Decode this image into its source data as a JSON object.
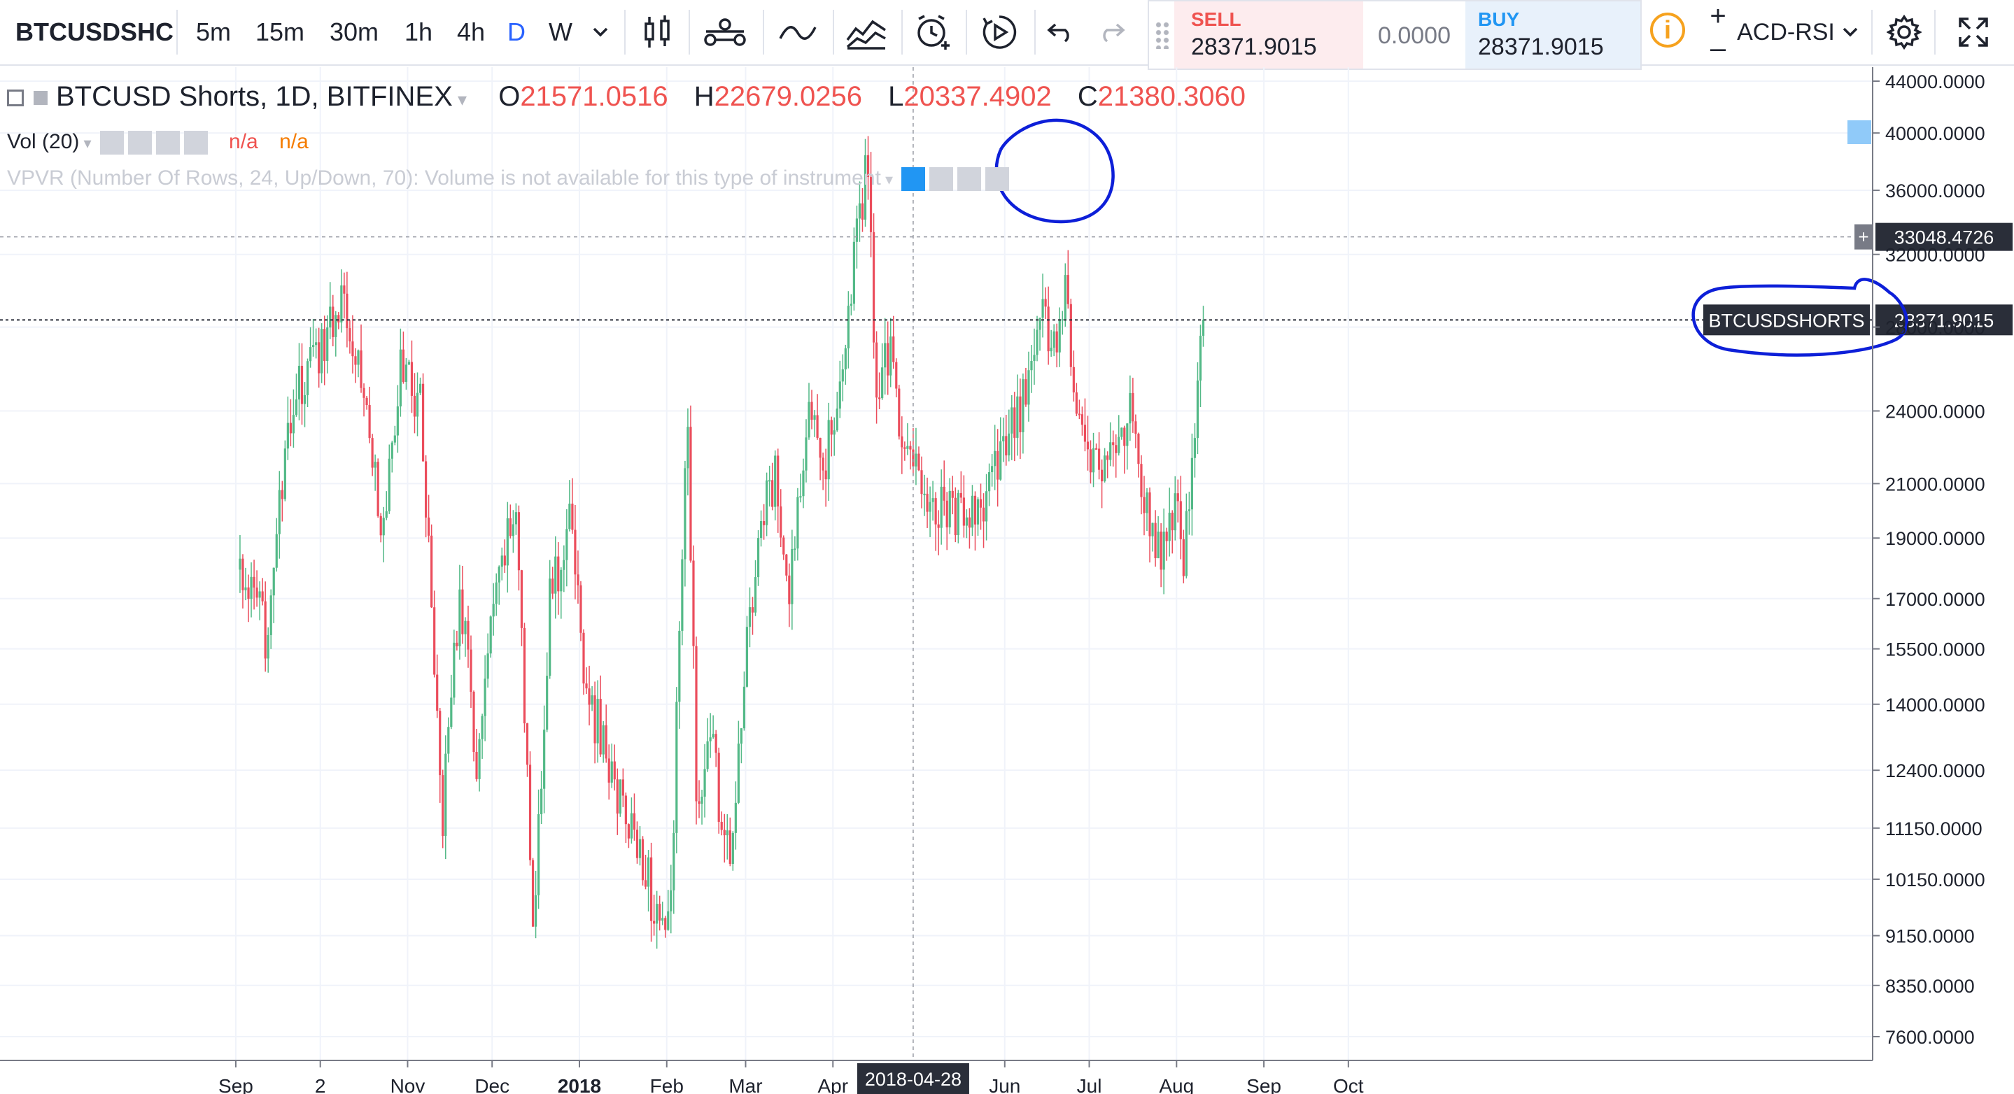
{
  "toolbar": {
    "symbol": "BTCUSDSHC",
    "intervals": [
      "5m",
      "15m",
      "30m",
      "1h",
      "4h",
      "D",
      "W"
    ],
    "active_interval": "D",
    "sell_label": "SELL",
    "sell_price": "28371.9015",
    "spread": "0.0000",
    "buy_label": "BUY",
    "buy_price": "28371.9015",
    "info": "i",
    "zoom_in": "+",
    "zoom_out": "–",
    "indicator_menu": "ACD-RSI"
  },
  "legend": {
    "title": "BTCUSD Shorts, 1D, BITFINEX",
    "o_label": "O",
    "o_value": "21571.0516",
    "h_label": "H",
    "h_value": "22679.0256",
    "l_label": "L",
    "l_value": "20337.4902",
    "c_label": "C",
    "c_value": "21380.3060",
    "vol_label": "Vol (20)",
    "vol_na1": "n/a",
    "vol_na2": "n/a",
    "vpvr_text": "VPVR (Number Of Rows, 24, Up/Down, 70): Volume is not available for this type of instrument"
  },
  "crosshair": {
    "price_label": "33048.4726",
    "date_label": "2018-04-28"
  },
  "last_price": {
    "symbol_label": "BTCUSDSHORTS",
    "price": "28371.9015"
  },
  "colors": {
    "up": "#53b987",
    "down": "#eb4d5c",
    "annotation": "#0d1fd8",
    "crosshair": "#9598a1"
  },
  "chart_data": {
    "type": "candlestick",
    "title": "BTCUSD Shorts, 1D, BITFINEX",
    "y_axis_ticks": [
      7600,
      8350,
      9150,
      10150,
      11150,
      12400,
      14000,
      15500,
      17000,
      19000,
      21000,
      24000,
      28000,
      32000,
      36000,
      40000,
      44000
    ],
    "y_tick_labels": [
      "7600.0000",
      "8350.0000",
      "9150.0000",
      "10150.0000",
      "11150.0000",
      "12400.0000",
      "14000.0000",
      "15500.0000",
      "17000.0000",
      "19000.0000",
      "21000.0000",
      "24000.0000",
      "28000.0000",
      "32000.0000",
      "36000.0000",
      "40000.0000",
      "44000.0000"
    ],
    "y_scale": "log",
    "x_tick_labels": [
      "Sep",
      "2",
      "Nov",
      "Dec",
      "2018",
      "Feb",
      "Mar",
      "Apr",
      "Jun",
      "Jul",
      "Aug",
      "Sep",
      "Oct"
    ],
    "grid": true,
    "anchors": [
      {
        "date": "2017-09-01",
        "close": 18000
      },
      {
        "date": "2017-09-10",
        "close": 16000
      },
      {
        "date": "2017-09-20",
        "close": 24500
      },
      {
        "date": "2017-09-28",
        "close": 26500
      },
      {
        "date": "2017-10-08",
        "close": 30000
      },
      {
        "date": "2017-10-15",
        "close": 25000
      },
      {
        "date": "2017-10-22",
        "close": 19000
      },
      {
        "date": "2017-10-28",
        "close": 26000
      },
      {
        "date": "2017-11-04",
        "close": 24500
      },
      {
        "date": "2017-11-12",
        "close": 11500
      },
      {
        "date": "2017-11-18",
        "close": 17500
      },
      {
        "date": "2017-11-24",
        "close": 12500
      },
      {
        "date": "2017-11-30",
        "close": 16500
      },
      {
        "date": "2017-12-08",
        "close": 20500
      },
      {
        "date": "2017-12-14",
        "close": 9200
      },
      {
        "date": "2017-12-20",
        "close": 17000
      },
      {
        "date": "2017-12-28",
        "close": 19600
      },
      {
        "date": "2018-01-02",
        "close": 14000
      },
      {
        "date": "2018-01-06",
        "close": 13500
      },
      {
        "date": "2018-01-15",
        "close": 11500
      },
      {
        "date": "2018-01-23",
        "close": 10500
      },
      {
        "date": "2018-01-28",
        "close": 9000
      },
      {
        "date": "2018-02-01",
        "close": 9800
      },
      {
        "date": "2018-02-05",
        "close": 18500
      },
      {
        "date": "2018-02-07",
        "close": 23500
      },
      {
        "date": "2018-02-10",
        "close": 11800
      },
      {
        "date": "2018-02-15",
        "close": 13200
      },
      {
        "date": "2018-02-22",
        "close": 10200
      },
      {
        "date": "2018-02-26",
        "close": 14000
      },
      {
        "date": "2018-03-05",
        "close": 19500
      },
      {
        "date": "2018-03-10",
        "close": 21200
      },
      {
        "date": "2018-03-15",
        "close": 17000
      },
      {
        "date": "2018-03-22",
        "close": 25000
      },
      {
        "date": "2018-03-28",
        "close": 22000
      },
      {
        "date": "2018-04-05",
        "close": 28000
      },
      {
        "date": "2018-04-08",
        "close": 33000
      },
      {
        "date": "2018-04-12",
        "close": 38000
      },
      {
        "date": "2018-04-15",
        "close": 24500
      },
      {
        "date": "2018-04-20",
        "close": 27000
      },
      {
        "date": "2018-04-25",
        "close": 22000
      },
      {
        "date": "2018-05-01",
        "close": 21000
      },
      {
        "date": "2018-05-10",
        "close": 20000
      },
      {
        "date": "2018-05-20",
        "close": 19500
      },
      {
        "date": "2018-05-28",
        "close": 21500
      },
      {
        "date": "2018-06-08",
        "close": 25000
      },
      {
        "date": "2018-06-12",
        "close": 29000
      },
      {
        "date": "2018-06-18",
        "close": 27000
      },
      {
        "date": "2018-06-21",
        "close": 29500
      },
      {
        "date": "2018-06-26",
        "close": 23500
      },
      {
        "date": "2018-07-03",
        "close": 21500
      },
      {
        "date": "2018-07-10",
        "close": 22500
      },
      {
        "date": "2018-07-15",
        "close": 24000
      },
      {
        "date": "2018-07-20",
        "close": 20000
      },
      {
        "date": "2018-07-25",
        "close": 18000
      },
      {
        "date": "2018-07-30",
        "close": 20500
      },
      {
        "date": "2018-08-02",
        "close": 17500
      },
      {
        "date": "2018-08-05",
        "close": 22500
      },
      {
        "date": "2018-08-09",
        "close": 28371.9015
      }
    ]
  }
}
